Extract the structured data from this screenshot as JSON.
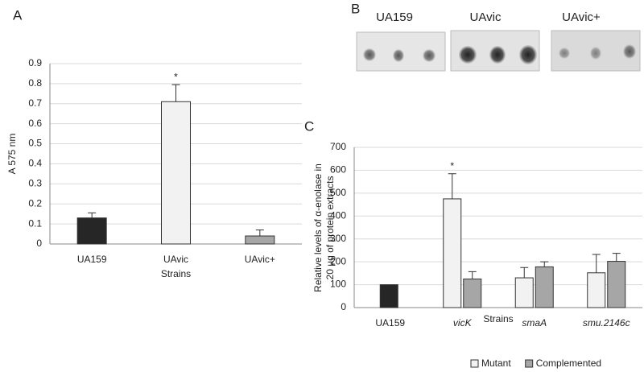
{
  "chart_data": [
    {
      "type": "bar",
      "panel_label": "A",
      "ylabel": "A 575 nm",
      "xlabel": "Strains",
      "categories": [
        "UA159",
        "UAvic",
        "UAvic+"
      ],
      "values": [
        0.13,
        0.71,
        0.04
      ],
      "errors": [
        0.025,
        0.085,
        0.03
      ],
      "colors": [
        "#262626",
        "#f2f2f2",
        "#a6a6a6"
      ],
      "ylim": [
        0,
        0.9
      ],
      "yticks": [
        0,
        0.1,
        0.2,
        0.3,
        0.4,
        0.5,
        0.6,
        0.7,
        0.8,
        0.9
      ],
      "grid": true,
      "annotations": [
        {
          "text": "*",
          "category": "UAvic"
        }
      ]
    },
    {
      "type": "grouped_bar",
      "panel_label": "C",
      "ylabel": [
        "Relative levels of α-enolase in",
        "20 µg of protein extracts"
      ],
      "xlabel": "Strains",
      "categories": [
        "UA159",
        "vicK",
        "smaA",
        "smu.2146c"
      ],
      "category_style": [
        "normal",
        "italic",
        "italic",
        "italic"
      ],
      "series": [
        {
          "color": "#262626",
          "values": [
            100,
            null,
            null,
            null
          ],
          "errors": [
            null,
            null,
            null,
            null
          ]
        },
        {
          "name": "Mutant",
          "color": "#f2f2f2",
          "values": [
            null,
            475,
            130,
            152
          ],
          "errors": [
            null,
            110,
            45,
            80
          ]
        },
        {
          "name": "Complemented",
          "color": "#a6a6a6",
          "values": [
            null,
            125,
            178,
            202
          ],
          "errors": [
            null,
            32,
            22,
            35
          ]
        }
      ],
      "ylim": [
        0,
        700
      ],
      "yticks": [
        0,
        100,
        200,
        300,
        400,
        500,
        600,
        700
      ],
      "grid": true,
      "legend": "bottom",
      "annotations": [
        {
          "text": "*",
          "category": "vicK",
          "series": "Mutant"
        }
      ]
    }
  ],
  "blot": {
    "panel_label": "B",
    "lanes": [
      "UA159",
      "UAvic",
      "UAvic+"
    ]
  }
}
